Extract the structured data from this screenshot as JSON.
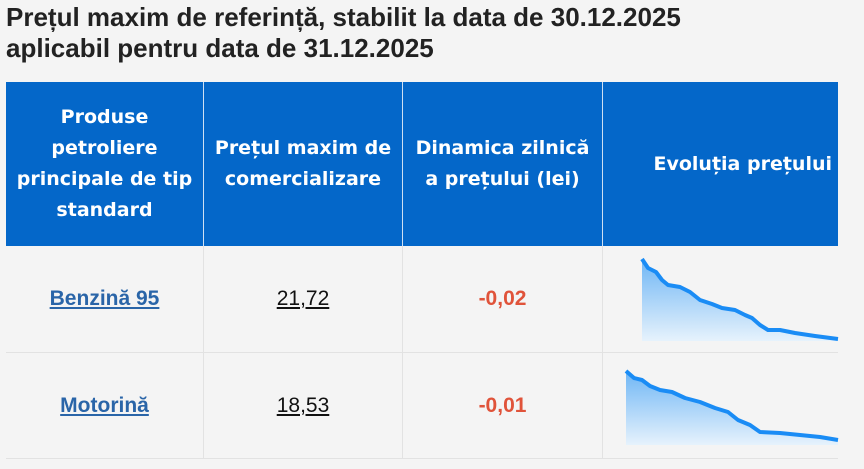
{
  "header": {
    "title_lines": [
      "Prețul maxim de referință, stabilit la data de 30.12.2025",
      "aplicabil pentru data de 31.12.2025"
    ]
  },
  "table": {
    "headers": [
      "Produse petroliere principale de tip standard",
      "Prețul maxim de comercializare",
      "Dinamica zilnică a prețului (lei)",
      "Evoluția prețului"
    ],
    "rows": [
      [
        "Benzină 95",
        "21,72",
        "-0,02"
      ],
      [
        "Motorină",
        "18,53",
        "-0,01"
      ]
    ]
  }
}
